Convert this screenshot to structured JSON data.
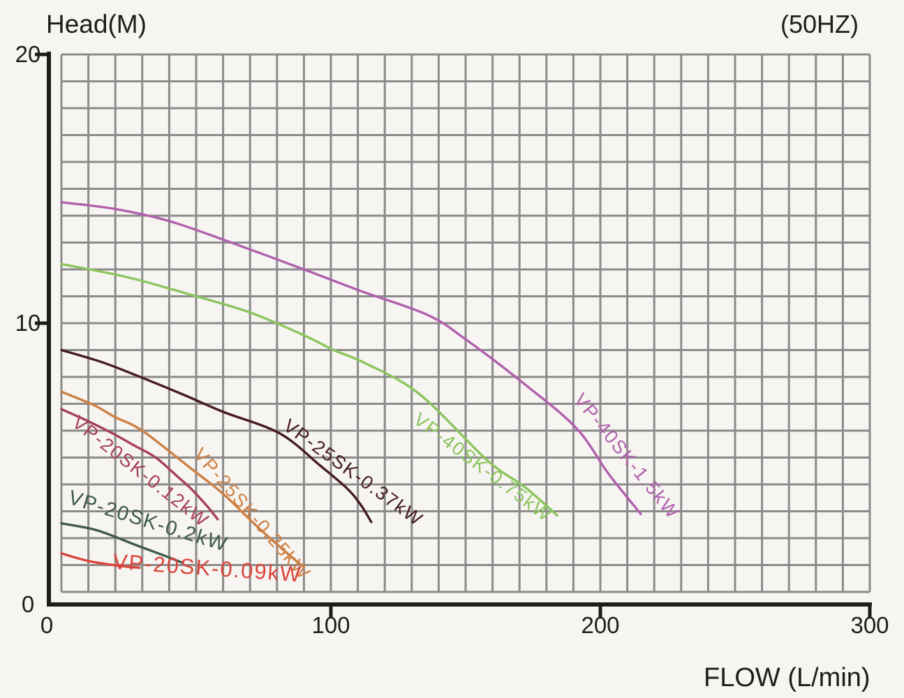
{
  "chart_data": {
    "type": "line",
    "ylabel": "Head(M)",
    "xlabel": "FLOW (L/min)",
    "frequency_note": "(50HZ)",
    "xlim": [
      0,
      300
    ],
    "ylim": [
      0,
      20
    ],
    "x_ticks": [
      0,
      100,
      200,
      300
    ],
    "y_ticks": [
      0,
      10,
      20
    ],
    "grid": {
      "on": true,
      "x_step": 10,
      "y_step": 1,
      "color": "#8b8b8b"
    },
    "axis_color": "#1d1d1b",
    "series": [
      {
        "name": "VP-40SK-1.5kW",
        "color": "#b160ae",
        "points": [
          [
            0,
            14.5
          ],
          [
            20,
            14.25
          ],
          [
            40,
            13.8
          ],
          [
            63,
            13.0
          ],
          [
            90,
            12.0
          ],
          [
            111,
            11.2
          ],
          [
            136,
            10.3
          ],
          [
            150,
            9.4
          ],
          [
            171,
            7.8
          ],
          [
            191,
            6.1
          ],
          [
            203,
            4.4
          ],
          [
            215,
            2.9
          ]
        ],
        "label": {
          "x": 208,
          "y": 4.9,
          "angle": 51,
          "size": 27
        }
      },
      {
        "name": "VP-40SK-0.75kW",
        "color": "#8bc55f",
        "points": [
          [
            0,
            12.2
          ],
          [
            25,
            11.7
          ],
          [
            50,
            11.0
          ],
          [
            70,
            10.4
          ],
          [
            90,
            9.55
          ],
          [
            101,
            9.0
          ],
          [
            113,
            8.5
          ],
          [
            133,
            7.35
          ],
          [
            158,
            4.9
          ],
          [
            172,
            3.9
          ],
          [
            184,
            2.85
          ]
        ],
        "label": {
          "x": 155,
          "y": 4.45,
          "angle": 37,
          "size": 27
        }
      },
      {
        "name": "VP-25SK-0.37kW",
        "color": "#451c24",
        "points": [
          [
            0,
            9.0
          ],
          [
            15,
            8.55
          ],
          [
            28,
            8.05
          ],
          [
            45,
            7.35
          ],
          [
            60,
            6.7
          ],
          [
            81,
            5.9
          ],
          [
            96,
            4.7
          ],
          [
            106,
            3.85
          ],
          [
            111,
            3.25
          ],
          [
            115,
            2.6
          ]
        ],
        "label": {
          "x": 107,
          "y": 4.25,
          "angle": 36,
          "size": 27
        }
      },
      {
        "name": "VP-25SK-0.25kW",
        "color": "#ce8045",
        "points": [
          [
            0,
            7.45
          ],
          [
            12,
            6.95
          ],
          [
            20,
            6.5
          ],
          [
            30,
            6.0
          ],
          [
            48,
            4.6
          ],
          [
            60,
            3.65
          ],
          [
            73,
            2.4
          ],
          [
            86,
            1.25
          ],
          [
            90,
            0.95
          ]
        ],
        "label": {
          "x": 69,
          "y": 2.75,
          "angle": 49,
          "size": 27
        }
      },
      {
        "name": "VP-20SK-0.12kW",
        "color": "#a64059",
        "points": [
          [
            0,
            6.8
          ],
          [
            10,
            6.35
          ],
          [
            19,
            5.9
          ],
          [
            27,
            5.45
          ],
          [
            35,
            5.0
          ],
          [
            43,
            4.3
          ],
          [
            48,
            3.85
          ],
          [
            54,
            3.2
          ],
          [
            58,
            2.7
          ]
        ],
        "label": {
          "x": 28,
          "y": 4.3,
          "angle": 38,
          "size": 27
        }
      },
      {
        "name": "VP-20SK-0.2kW",
        "color": "#3e5a49",
        "points": [
          [
            0,
            2.55
          ],
          [
            13,
            2.3
          ],
          [
            27,
            1.77
          ],
          [
            39,
            1.32
          ],
          [
            45,
            1.08
          ]
        ],
        "label": {
          "x": 31.5,
          "y": 2.4,
          "angle": 17,
          "size": 29
        }
      },
      {
        "name": "VP-20SK-0.09kW",
        "color": "#da453c",
        "points": [
          [
            0,
            1.43
          ],
          [
            10,
            1.15
          ],
          [
            20,
            0.99
          ],
          [
            29,
            0.9
          ]
        ],
        "label": {
          "x": 54,
          "y": 0.62,
          "angle": 4,
          "size": 31
        }
      }
    ]
  }
}
